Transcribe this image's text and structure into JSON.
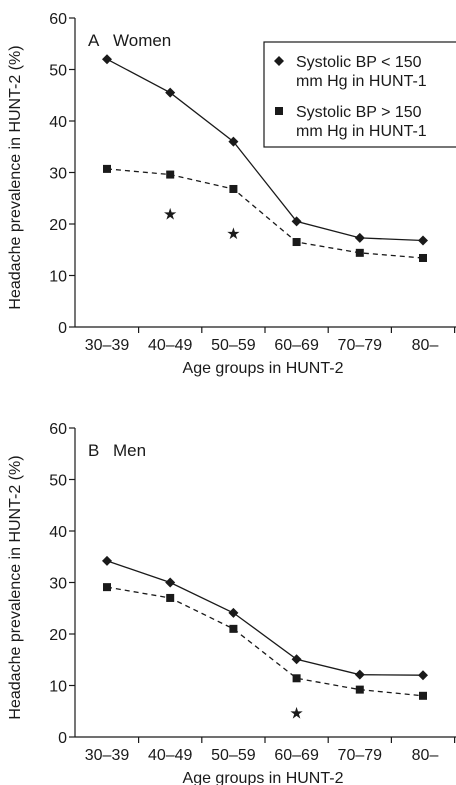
{
  "chart_data": [
    {
      "type": "line",
      "panel_label": "A",
      "panel_title": "Women",
      "xlabel": "Age groups in HUNT-2",
      "ylabel": "Headache prevalence in HUNT-2 (%)",
      "categories": [
        "30–39",
        "40–49",
        "50–59",
        "60–69",
        "70–79",
        "80–"
      ],
      "ylim": [
        0,
        60
      ],
      "yticks": [
        "0",
        "10",
        "20",
        "30",
        "40",
        "50",
        "60"
      ],
      "grid": false,
      "legend_position": "top-right",
      "series": [
        {
          "name_line1": "Systolic BP < 150",
          "name_line2": "mm Hg in HUNT-1",
          "marker": "diamond",
          "line": "solid",
          "values": [
            52,
            45.5,
            36,
            20.5,
            17.3,
            16.8
          ]
        },
        {
          "name_line1": "Systolic BP > 150",
          "name_line2": "mm Hg in HUNT-1",
          "marker": "square",
          "line": "dashed",
          "values": [
            30.7,
            29.6,
            26.8,
            16.5,
            14.4,
            13.4
          ]
        }
      ],
      "significance_markers": [
        {
          "category": "40–49",
          "y": 22,
          "symbol": "★"
        },
        {
          "category": "50–59",
          "y": 18.3,
          "symbol": "★"
        }
      ]
    },
    {
      "type": "line",
      "panel_label": "B",
      "panel_title": "Men",
      "xlabel": "Age groups in HUNT-2",
      "ylabel": "Headache prevalence in HUNT-2 (%)",
      "categories": [
        "30–39",
        "40–49",
        "50–59",
        "60–69",
        "70–79",
        "80–"
      ],
      "ylim": [
        0,
        60
      ],
      "yticks": [
        "0",
        "10",
        "20",
        "30",
        "40",
        "50",
        "60"
      ],
      "grid": false,
      "series": [
        {
          "marker": "diamond",
          "line": "solid",
          "values": [
            34.2,
            30,
            24.1,
            15.1,
            12.1,
            12
          ]
        },
        {
          "marker": "square",
          "line": "dashed",
          "values": [
            29.1,
            27,
            21,
            11.4,
            9.2,
            8
          ]
        }
      ],
      "significance_markers": [
        {
          "category": "60–69",
          "y": 4.8,
          "symbol": "★"
        }
      ]
    }
  ]
}
